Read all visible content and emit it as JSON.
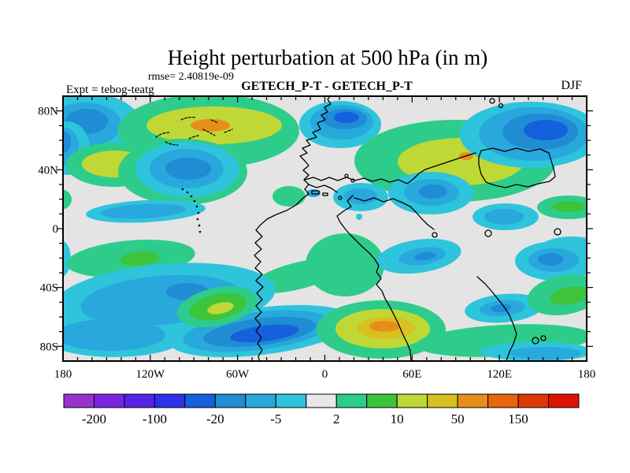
{
  "page": {
    "background": "#FFFFFF"
  },
  "header": {
    "title": "Height perturbation at 500 hPa (in m)",
    "rmse": "rmse= 2.40819e-09",
    "comparison": "GETECH_P-T - GETECH_P-T",
    "experiment": "Expt = tebog-teatg",
    "season": "DJF"
  },
  "chart_data": {
    "type": "heatmap",
    "subtype": "filled-contour-world-map",
    "title": "Height perturbation at 500 hPa (in m)",
    "subtitle": "GETECH_P-T - GETECH_P-T",
    "annotations": {
      "rmse": "rmse= 2.40819e-09",
      "experiment": "Expt = tebog-teatg",
      "season": "DJF"
    },
    "x_axis": {
      "range": [
        -180,
        180
      ],
      "minor_tick_step_deg": 10,
      "ticks": [
        {
          "pos": -180,
          "label": "180"
        },
        {
          "pos": -120,
          "label": "120W"
        },
        {
          "pos": -60,
          "label": "60W"
        },
        {
          "pos": 0,
          "label": "0"
        },
        {
          "pos": 60,
          "label": "60E"
        },
        {
          "pos": 120,
          "label": "120E"
        },
        {
          "pos": 180,
          "label": "180"
        }
      ]
    },
    "y_axis": {
      "range": [
        -90,
        90
      ],
      "minor_tick_step_deg": 10,
      "ticks": [
        {
          "pos": 80,
          "label": "80N"
        },
        {
          "pos": 40,
          "label": "40N"
        },
        {
          "pos": 0,
          "label": "0"
        },
        {
          "pos": -40,
          "label": "40S"
        },
        {
          "pos": -80,
          "label": "80S"
        }
      ]
    },
    "colorbar": {
      "levels": [
        -200,
        -150,
        -100,
        -50,
        -20,
        -10,
        -5,
        -2,
        2,
        5,
        10,
        20,
        50,
        100,
        150,
        200
      ],
      "labeled_levels": [
        -200,
        -100,
        -20,
        -5,
        2,
        10,
        50,
        150
      ],
      "colors": [
        "#9832CC",
        "#7A24E0",
        "#5522E6",
        "#2D32E8",
        "#1560DD",
        "#1F8CD4",
        "#28A8DC",
        "#2EC4DC",
        "#E8E8E8",
        "#2ECC8A",
        "#3EC43A",
        "#BFD836",
        "#D8C020",
        "#E68E1A",
        "#E8650D",
        "#DC3A05",
        "#DD1404"
      ]
    },
    "map_background": "#E4E4E4",
    "coastline_color": "#000000"
  }
}
